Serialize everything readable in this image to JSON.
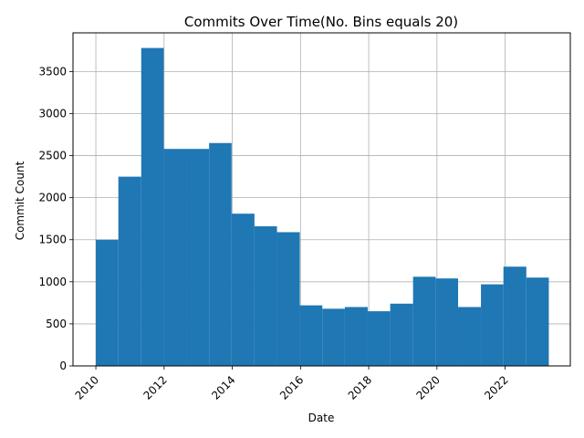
{
  "chart_data": {
    "type": "bar",
    "title": "Commits Over Time(No. Bins equals 20)",
    "xlabel": "Date",
    "ylabel": "Commit Count",
    "grid": true,
    "bar_color": "#1f77b4",
    "x_ticks": [
      {
        "value": 2010,
        "label": "2010"
      },
      {
        "value": 2012,
        "label": "2012"
      },
      {
        "value": 2014,
        "label": "2014"
      },
      {
        "value": 2016,
        "label": "2016"
      },
      {
        "value": 2018,
        "label": "2018"
      },
      {
        "value": 2020,
        "label": "2020"
      },
      {
        "value": 2022,
        "label": "2022"
      }
    ],
    "y_ticks": [
      {
        "value": 0,
        "label": "0"
      },
      {
        "value": 500,
        "label": "500"
      },
      {
        "value": 1000,
        "label": "1000"
      },
      {
        "value": 1500,
        "label": "1500"
      },
      {
        "value": 2000,
        "label": "2000"
      },
      {
        "value": 2500,
        "label": "2500"
      },
      {
        "value": 3000,
        "label": "3000"
      },
      {
        "value": 3500,
        "label": "3500"
      }
    ],
    "xlim": [
      2009.33,
      2023.91
    ],
    "ylim": [
      0,
      3960
    ],
    "bins": [
      {
        "start": 2010.0,
        "end": 2010.66,
        "count": 1500
      },
      {
        "start": 2010.66,
        "end": 2011.33,
        "count": 2250
      },
      {
        "start": 2011.33,
        "end": 2011.99,
        "count": 3780
      },
      {
        "start": 2011.99,
        "end": 2012.66,
        "count": 2580
      },
      {
        "start": 2012.66,
        "end": 2013.32,
        "count": 2580
      },
      {
        "start": 2013.32,
        "end": 2013.98,
        "count": 2650
      },
      {
        "start": 2013.98,
        "end": 2014.65,
        "count": 1810
      },
      {
        "start": 2014.65,
        "end": 2015.31,
        "count": 1660
      },
      {
        "start": 2015.31,
        "end": 2015.98,
        "count": 1590
      },
      {
        "start": 2015.98,
        "end": 2016.64,
        "count": 720
      },
      {
        "start": 2016.64,
        "end": 2017.3,
        "count": 680
      },
      {
        "start": 2017.3,
        "end": 2017.97,
        "count": 700
      },
      {
        "start": 2017.97,
        "end": 2018.63,
        "count": 650
      },
      {
        "start": 2018.63,
        "end": 2019.3,
        "count": 740
      },
      {
        "start": 2019.3,
        "end": 2019.96,
        "count": 1060
      },
      {
        "start": 2019.96,
        "end": 2020.62,
        "count": 1040
      },
      {
        "start": 2020.62,
        "end": 2021.29,
        "count": 700
      },
      {
        "start": 2021.29,
        "end": 2021.95,
        "count": 970
      },
      {
        "start": 2021.95,
        "end": 2022.62,
        "count": 1180
      },
      {
        "start": 2022.62,
        "end": 2023.28,
        "count": 1050
      }
    ]
  }
}
